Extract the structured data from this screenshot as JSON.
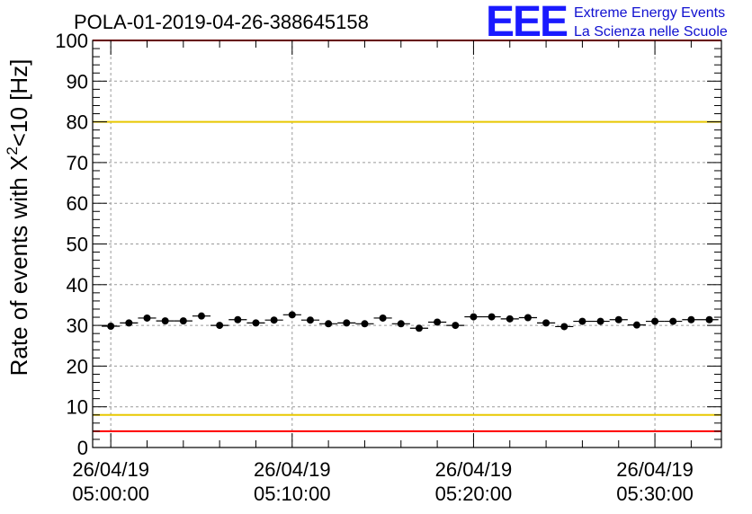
{
  "header": {
    "title": "POLA-01-2019-04-26-388645158"
  },
  "logo": {
    "letters": "EEE",
    "line1": "Extreme Energy Events",
    "line2": "La Scienza nelle Scuole"
  },
  "colors": {
    "threshold_red": "#ff0000",
    "threshold_yellow": "#e8c800",
    "grid": "#9a9a9a",
    "marker": "#000000",
    "logo_blue": "#1a1aff"
  },
  "chart_data": {
    "type": "scatter",
    "title": "POLA-01-2019-04-26-388645158",
    "xlabel": "",
    "ylabel": "Rate of events with X²<10 [Hz]",
    "ylabel_parts": {
      "pre": "Rate of events with X",
      "sup": "2",
      "post": "<10 [Hz]"
    },
    "xlim": [
      "26/04/19 04:59:00",
      "26/04/19 05:33:40"
    ],
    "ylim": [
      0,
      100
    ],
    "grid": true,
    "y_ticks": [
      0,
      10,
      20,
      30,
      40,
      50,
      60,
      70,
      80,
      90,
      100
    ],
    "x_ticks": [
      {
        "date": "26/04/19",
        "time": "05:00:00"
      },
      {
        "date": "26/04/19",
        "time": "05:10:00"
      },
      {
        "date": "26/04/19",
        "time": "05:20:00"
      },
      {
        "date": "26/04/19",
        "time": "05:30:00"
      }
    ],
    "thresholds": [
      {
        "value": 100,
        "color": "red"
      },
      {
        "value": 80,
        "color": "yellow"
      },
      {
        "value": 8,
        "color": "yellow"
      },
      {
        "value": 4,
        "color": "red"
      }
    ],
    "bin_width_minutes": 1,
    "points": [
      {
        "x": "05:00:00",
        "y": 29.8
      },
      {
        "x": "05:01:00",
        "y": 30.6
      },
      {
        "x": "05:02:00",
        "y": 31.8
      },
      {
        "x": "05:03:00",
        "y": 31.1
      },
      {
        "x": "05:04:00",
        "y": 31.1
      },
      {
        "x": "05:05:00",
        "y": 32.3
      },
      {
        "x": "05:06:00",
        "y": 30.0
      },
      {
        "x": "05:07:00",
        "y": 31.4
      },
      {
        "x": "05:08:00",
        "y": 30.6
      },
      {
        "x": "05:09:00",
        "y": 31.3
      },
      {
        "x": "05:10:00",
        "y": 32.6
      },
      {
        "x": "05:11:00",
        "y": 31.3
      },
      {
        "x": "05:12:00",
        "y": 30.4
      },
      {
        "x": "05:13:00",
        "y": 30.6
      },
      {
        "x": "05:14:00",
        "y": 30.4
      },
      {
        "x": "05:15:00",
        "y": 31.8
      },
      {
        "x": "05:16:00",
        "y": 30.4
      },
      {
        "x": "05:17:00",
        "y": 29.3
      },
      {
        "x": "05:18:00",
        "y": 30.8
      },
      {
        "x": "05:19:00",
        "y": 30.0
      },
      {
        "x": "05:20:00",
        "y": 32.1
      },
      {
        "x": "05:21:00",
        "y": 32.1
      },
      {
        "x": "05:22:00",
        "y": 31.6
      },
      {
        "x": "05:23:00",
        "y": 31.9
      },
      {
        "x": "05:24:00",
        "y": 30.6
      },
      {
        "x": "05:25:00",
        "y": 29.7
      },
      {
        "x": "05:26:00",
        "y": 31.0
      },
      {
        "x": "05:27:00",
        "y": 31.0
      },
      {
        "x": "05:28:00",
        "y": 31.4
      },
      {
        "x": "05:29:00",
        "y": 30.1
      },
      {
        "x": "05:30:00",
        "y": 31.0
      },
      {
        "x": "05:31:00",
        "y": 31.0
      },
      {
        "x": "05:32:00",
        "y": 31.4
      },
      {
        "x": "05:33:00",
        "y": 31.4
      }
    ]
  }
}
